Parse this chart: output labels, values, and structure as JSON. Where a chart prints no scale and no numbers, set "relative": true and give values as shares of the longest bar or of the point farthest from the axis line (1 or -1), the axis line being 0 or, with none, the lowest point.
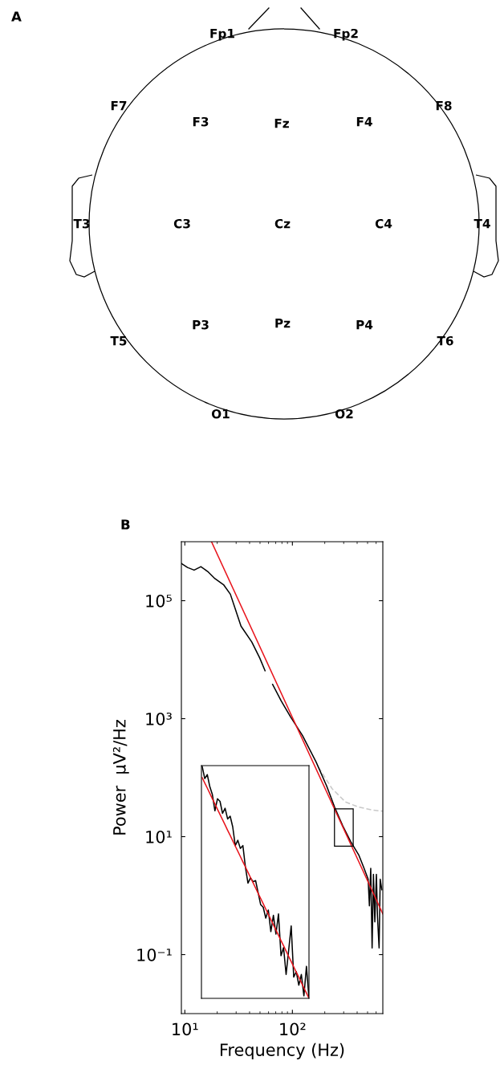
{
  "chart_data": [
    {
      "type": "other",
      "title": "A",
      "annotations": [
        "Fp1",
        "Fp2",
        "F7",
        "F3",
        "Fz",
        "F4",
        "F8",
        "T3",
        "C3",
        "Cz",
        "C4",
        "T4",
        "T5",
        "P3",
        "Pz",
        "P4",
        "T6",
        "O1",
        "O2"
      ]
    },
    {
      "type": "line",
      "title": "B",
      "xlabel": "Frequency (Hz)",
      "ylabel": "Power  μV²/Hz",
      "log": "xy",
      "xlim": [
        9.29,
        693
      ],
      "ylim": [
        0.01,
        1000000
      ],
      "xticks": [
        {
          "value": 10,
          "label": "10¹"
        },
        {
          "value": 100,
          "label": "10²"
        }
      ],
      "yticks": [
        {
          "value": 0.1,
          "label": "10⁻¹"
        },
        {
          "value": 10,
          "label": "10¹"
        },
        {
          "value": 1000,
          "label": "10³"
        },
        {
          "value": 100000,
          "label": "10⁵"
        }
      ],
      "series": [
        {
          "color": "#c8c8c8",
          "line_style": "dashed",
          "x": [
            175,
            234,
            311,
            414,
            551,
            693
          ],
          "values": [
            150,
            65,
            38.8,
            31.6,
            28.4,
            27
          ]
        },
        {
          "color": "#000000",
          "x": [
            9.29,
            10.6,
            12.2,
            14.1,
            16.3,
            18.8,
            22.9,
            26.5,
            29.7,
            33.3,
            41.9,
            49.7,
            55.7,
            60,
            65.5,
            78.7,
            96,
            124,
            166,
            208,
            247,
            294,
            349,
            414,
            464,
            506,
            520,
            535,
            551,
            567,
            584,
            604,
            618,
            640,
            655,
            678
          ],
          "values": [
            428000,
            366000,
            330000,
            378000,
            313000,
            242000,
            187000,
            129000,
            69000,
            37000,
            20000,
            10700,
            6500,
            null,
            3800,
            2000,
            1080,
            520,
            185,
            72.6,
            31.6,
            15.2,
            8.2,
            4.9,
            2.9,
            1.9,
            0.67,
            2.9,
            0.13,
            2.3,
            0.36,
            2.3,
            0.44,
            0.13,
            1.9,
            1.26
          ]
        },
        {
          "color": "#e8141c",
          "x": [
            17.7,
            693
          ],
          "values": [
            1000000,
            0.49
          ]
        }
      ]
    },
    {
      "type": "line",
      "relative": true,
      "categories": [
        null,
        null,
        null,
        null,
        null,
        null,
        null,
        null,
        null,
        null,
        null,
        null,
        null,
        null,
        null,
        null,
        null,
        null,
        null,
        null,
        null,
        null,
        null,
        null,
        null,
        null,
        null,
        null,
        null,
        null,
        null,
        null,
        null,
        null,
        null,
        null,
        null,
        null,
        null,
        null,
        null,
        null,
        null
      ],
      "series": [
        {
          "color": "#000000",
          "values": [
            1.0,
            0.948,
            0.965,
            0.913,
            0.879,
            0.809,
            0.861,
            0.85,
            0.798,
            0.82,
            0.774,
            0.786,
            0.74,
            0.659,
            0.682,
            0.647,
            0.659,
            0.566,
            0.497,
            0.52,
            0.503,
            0.508,
            0.456,
            0.404,
            0.393,
            0.346,
            0.381,
            0.288,
            0.358,
            0.277,
            0.364,
            0.184,
            0.219,
            0.103,
            0.207,
            0.312,
            0.092,
            0.115,
            0.057,
            0.103,
            0.011,
            0.138,
            0
          ]
        },
        {
          "color": "#e8141c",
          "values": [
            0.952,
            0.929,
            0.907,
            0.884,
            0.861,
            0.839,
            0.816,
            0.793,
            0.771,
            0.748,
            0.725,
            0.703,
            0.68,
            0.657,
            0.635,
            0.612,
            0.589,
            0.567,
            0.544,
            0.521,
            0.499,
            0.476,
            0.453,
            0.431,
            0.408,
            0.385,
            0.363,
            0.34,
            0.317,
            0.295,
            0.272,
            0.249,
            0.227,
            0.204,
            0.181,
            0.159,
            0.136,
            0.113,
            0.091,
            0.068,
            0.045,
            0.023,
            0
          ]
        }
      ]
    }
  ]
}
